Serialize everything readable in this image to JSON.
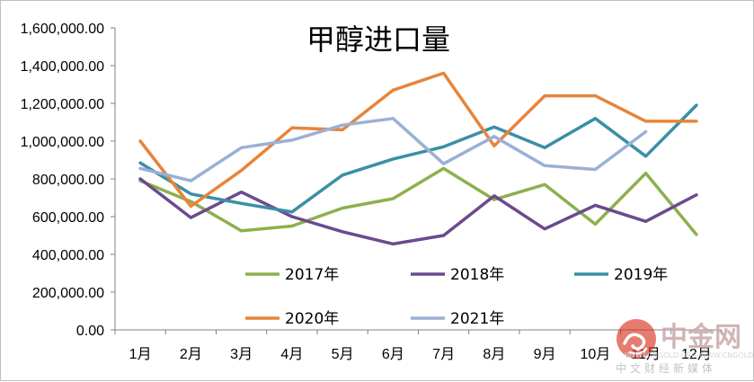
{
  "chart_data": {
    "type": "line",
    "title": "甲醇进口量",
    "categories": [
      "1月",
      "2月",
      "3月",
      "4月",
      "5月",
      "6月",
      "7月",
      "8月",
      "9月",
      "10月",
      "11月",
      "12月"
    ],
    "ylim": [
      0,
      1600000
    ],
    "yticks": [
      "0.00",
      "200,000.00",
      "400,000.00",
      "600,000.00",
      "800,000.00",
      "1,000,000.00",
      "1,200,000.00",
      "1,400,000.00",
      "1,600,000.00"
    ],
    "grid": false,
    "legend_position": "inside-bottom",
    "series": [
      {
        "name": "2017年",
        "color": "#8cb04e",
        "values": [
          790000,
          680000,
          525000,
          550000,
          645000,
          695000,
          855000,
          690000,
          770000,
          560000,
          830000,
          505000
        ]
      },
      {
        "name": "2018年",
        "color": "#6c4a8e",
        "values": [
          800000,
          595000,
          730000,
          600000,
          520000,
          455000,
          500000,
          710000,
          535000,
          660000,
          575000,
          715000
        ]
      },
      {
        "name": "2019年",
        "color": "#3a8fa6",
        "values": [
          885000,
          720000,
          670000,
          625000,
          820000,
          905000,
          970000,
          1075000,
          965000,
          1120000,
          920000,
          1190000
        ]
      },
      {
        "name": "2020年",
        "color": "#e7843a",
        "values": [
          1000000,
          655000,
          845000,
          1070000,
          1060000,
          1270000,
          1360000,
          975000,
          1240000,
          1240000,
          1105000,
          1105000
        ]
      },
      {
        "name": "2021年",
        "color": "#9bb0d6",
        "values": [
          855000,
          790000,
          965000,
          1005000,
          1085000,
          1120000,
          880000,
          1025000,
          870000,
          850000,
          1050000,
          null
        ]
      }
    ]
  },
  "watermark": {
    "name": "中金网",
    "url": "WWW.CNGOLD.ORG WWW.CNGOLD.COM.CN",
    "tagline": "中文财经新媒体",
    "icon": "cloud-swirl-icon",
    "color": "#d7331e"
  }
}
